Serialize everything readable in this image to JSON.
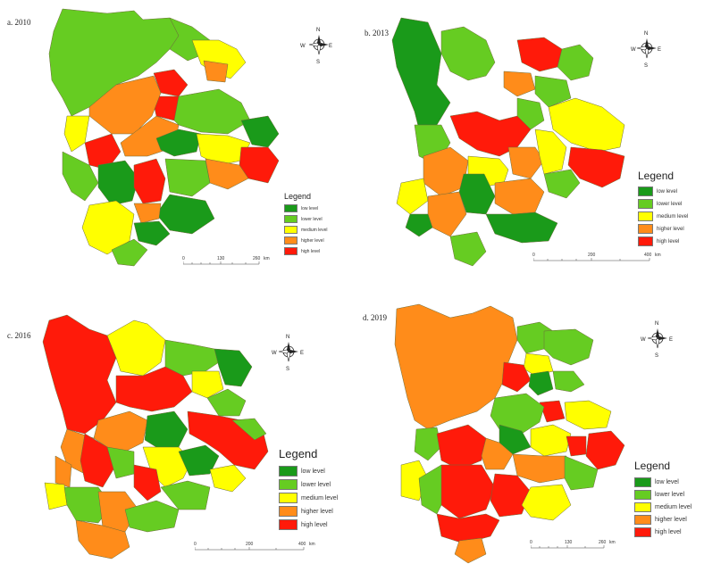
{
  "colors": {
    "low": "#1a9a1a",
    "lower": "#66cc22",
    "medium": "#ffff00",
    "higher": "#ff8c1a",
    "high": "#ff1a0a",
    "border": "#6b6b3a"
  },
  "legend_title": "Legend",
  "legend_items": [
    "low level",
    "lower level",
    "medium level",
    "higher level",
    "high level"
  ],
  "compass": {
    "n": "N",
    "s": "S",
    "e": "E",
    "w": "W"
  },
  "panels": [
    {
      "label": "a. 2010",
      "scale": [
        "0",
        "130",
        "260",
        "km"
      ]
    },
    {
      "label": "b. 2013",
      "scale": [
        "0",
        "200",
        "400",
        "km"
      ]
    },
    {
      "label": "c. 2016",
      "scale": [
        "0",
        "200",
        "400",
        "km"
      ]
    },
    {
      "label": "d. 2019",
      "scale": [
        "0",
        "130",
        "260",
        "km"
      ]
    }
  ]
}
